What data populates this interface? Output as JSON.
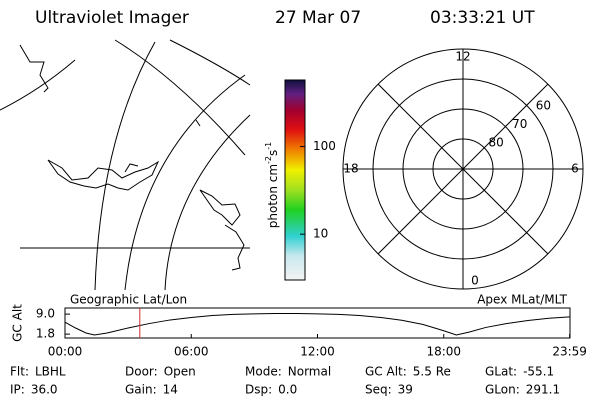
{
  "header": {
    "title": "Ultraviolet Imager",
    "date": "27 Mar 07",
    "time": "03:33:21 UT"
  },
  "colorbar": {
    "label": "photon cm",
    "exp1": "-2",
    "unit2": "s",
    "exp2": "-1",
    "log": true,
    "lim": [
      3,
      575
    ],
    "ticks": [
      10,
      100
    ]
  },
  "polar": {
    "hours": [
      {
        "value": 12,
        "label": "12"
      },
      {
        "value": 18,
        "label": "18"
      },
      {
        "value": 6,
        "label": "6"
      },
      {
        "value": 0,
        "label": "0"
      }
    ],
    "latitudes": [
      60,
      70,
      80
    ]
  },
  "chart_data": {
    "type": "line",
    "left_label": "Geographic Lat/Lon",
    "right_label": "Apex MLat/MLT",
    "ylabel": "GC Alt",
    "x": [
      0,
      0.5,
      1,
      1.4,
      2,
      3,
      4,
      5,
      6,
      7,
      8,
      9,
      10,
      11,
      12,
      13,
      14,
      15,
      16,
      17,
      18,
      18.6,
      19.2,
      20,
      21,
      22,
      23,
      23.98
    ],
    "series": [
      {
        "name": "GC Alt",
        "color": "#000000",
        "values": [
          6.1,
          4.0,
          2.2,
          1.5,
          2.2,
          4.0,
          5.6,
          6.9,
          7.8,
          8.5,
          8.9,
          9.1,
          9.2,
          9.2,
          9.1,
          8.9,
          8.5,
          7.8,
          6.8,
          5.3,
          3.0,
          1.5,
          2.5,
          4.2,
          5.6,
          6.7,
          7.5,
          8.0
        ]
      }
    ],
    "current_time": 3.555,
    "current_color": "#d03030",
    "xlim": [
      0,
      24
    ],
    "xticks": [
      {
        "value": 0,
        "label": "00:00"
      },
      {
        "value": 6,
        "label": "06:00"
      },
      {
        "value": 12,
        "label": "12:00"
      },
      {
        "value": 18,
        "label": "18:00"
      },
      {
        "value": 23.983,
        "label": "23:59"
      }
    ],
    "ylim": [
      0.4,
      11.2
    ],
    "yticks": [
      1.8,
      {
        "value": 9,
        "label": "9.0"
      }
    ]
  },
  "footer": {
    "rows": [
      [
        {
          "label": "Flt:",
          "value": "LBHL"
        },
        {
          "label": "Door:",
          "value": "Open"
        },
        {
          "label": "Mode:",
          "value": "Normal"
        },
        {
          "label": "GC Alt:",
          "value": "5.5 Re"
        },
        {
          "label": "GLat:",
          "value": "-55.1"
        }
      ],
      [
        {
          "label": "IP:",
          "value": "36.0"
        },
        {
          "label": "Gain:",
          "value": "14"
        },
        {
          "label": "Dsp:",
          "value": "0.0"
        },
        {
          "label": "Seq:",
          "value": "39"
        },
        {
          "label": "GLon:",
          "value": "291.1"
        }
      ]
    ]
  }
}
